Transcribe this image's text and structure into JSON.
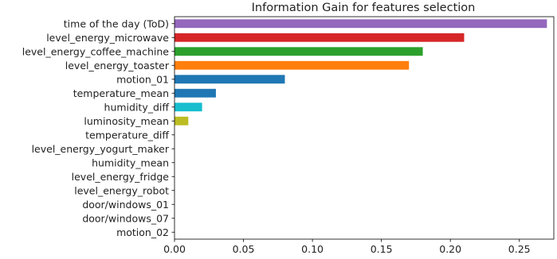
{
  "chart_data": {
    "type": "bar",
    "orientation": "horizontal",
    "title": "Information Gain for features selection",
    "xlabel": "",
    "ylabel": "",
    "xlim": [
      0,
      0.275
    ],
    "x_ticks": [
      0.0,
      0.05,
      0.1,
      0.15,
      0.2,
      0.25
    ],
    "x_tick_labels": [
      "0.00",
      "0.05",
      "0.10",
      "0.15",
      "0.20",
      "0.25"
    ],
    "grid": false,
    "categories": [
      "time of the day (ToD)",
      "level_energy_microwave",
      "level_energy_coffee_machine",
      "level_energy_toaster",
      "motion_01",
      "temperature_mean",
      "humidity_diff",
      "luminosity_mean",
      "temperature_diff",
      "level_energy_yogurt_maker",
      "humidity_mean",
      "level_energy_fridge",
      "level_energy_robot",
      "door/windows_01",
      "door/windows_07",
      "motion_02"
    ],
    "values": [
      0.27,
      0.21,
      0.18,
      0.17,
      0.08,
      0.03,
      0.02,
      0.01,
      0,
      0,
      0,
      0,
      0,
      0,
      0,
      0
    ],
    "colors": [
      "#9467bd",
      "#d62728",
      "#2ca02c",
      "#ff7f0e",
      "#1f77b4",
      "#1f77b4",
      "#17becf",
      "#bcbd22",
      "#7f7f7f",
      "#e377c2",
      "#8c564b",
      "#9467bd",
      "#d62728",
      "#2ca02c",
      "#ff7f0e",
      "#1f77b4"
    ]
  }
}
